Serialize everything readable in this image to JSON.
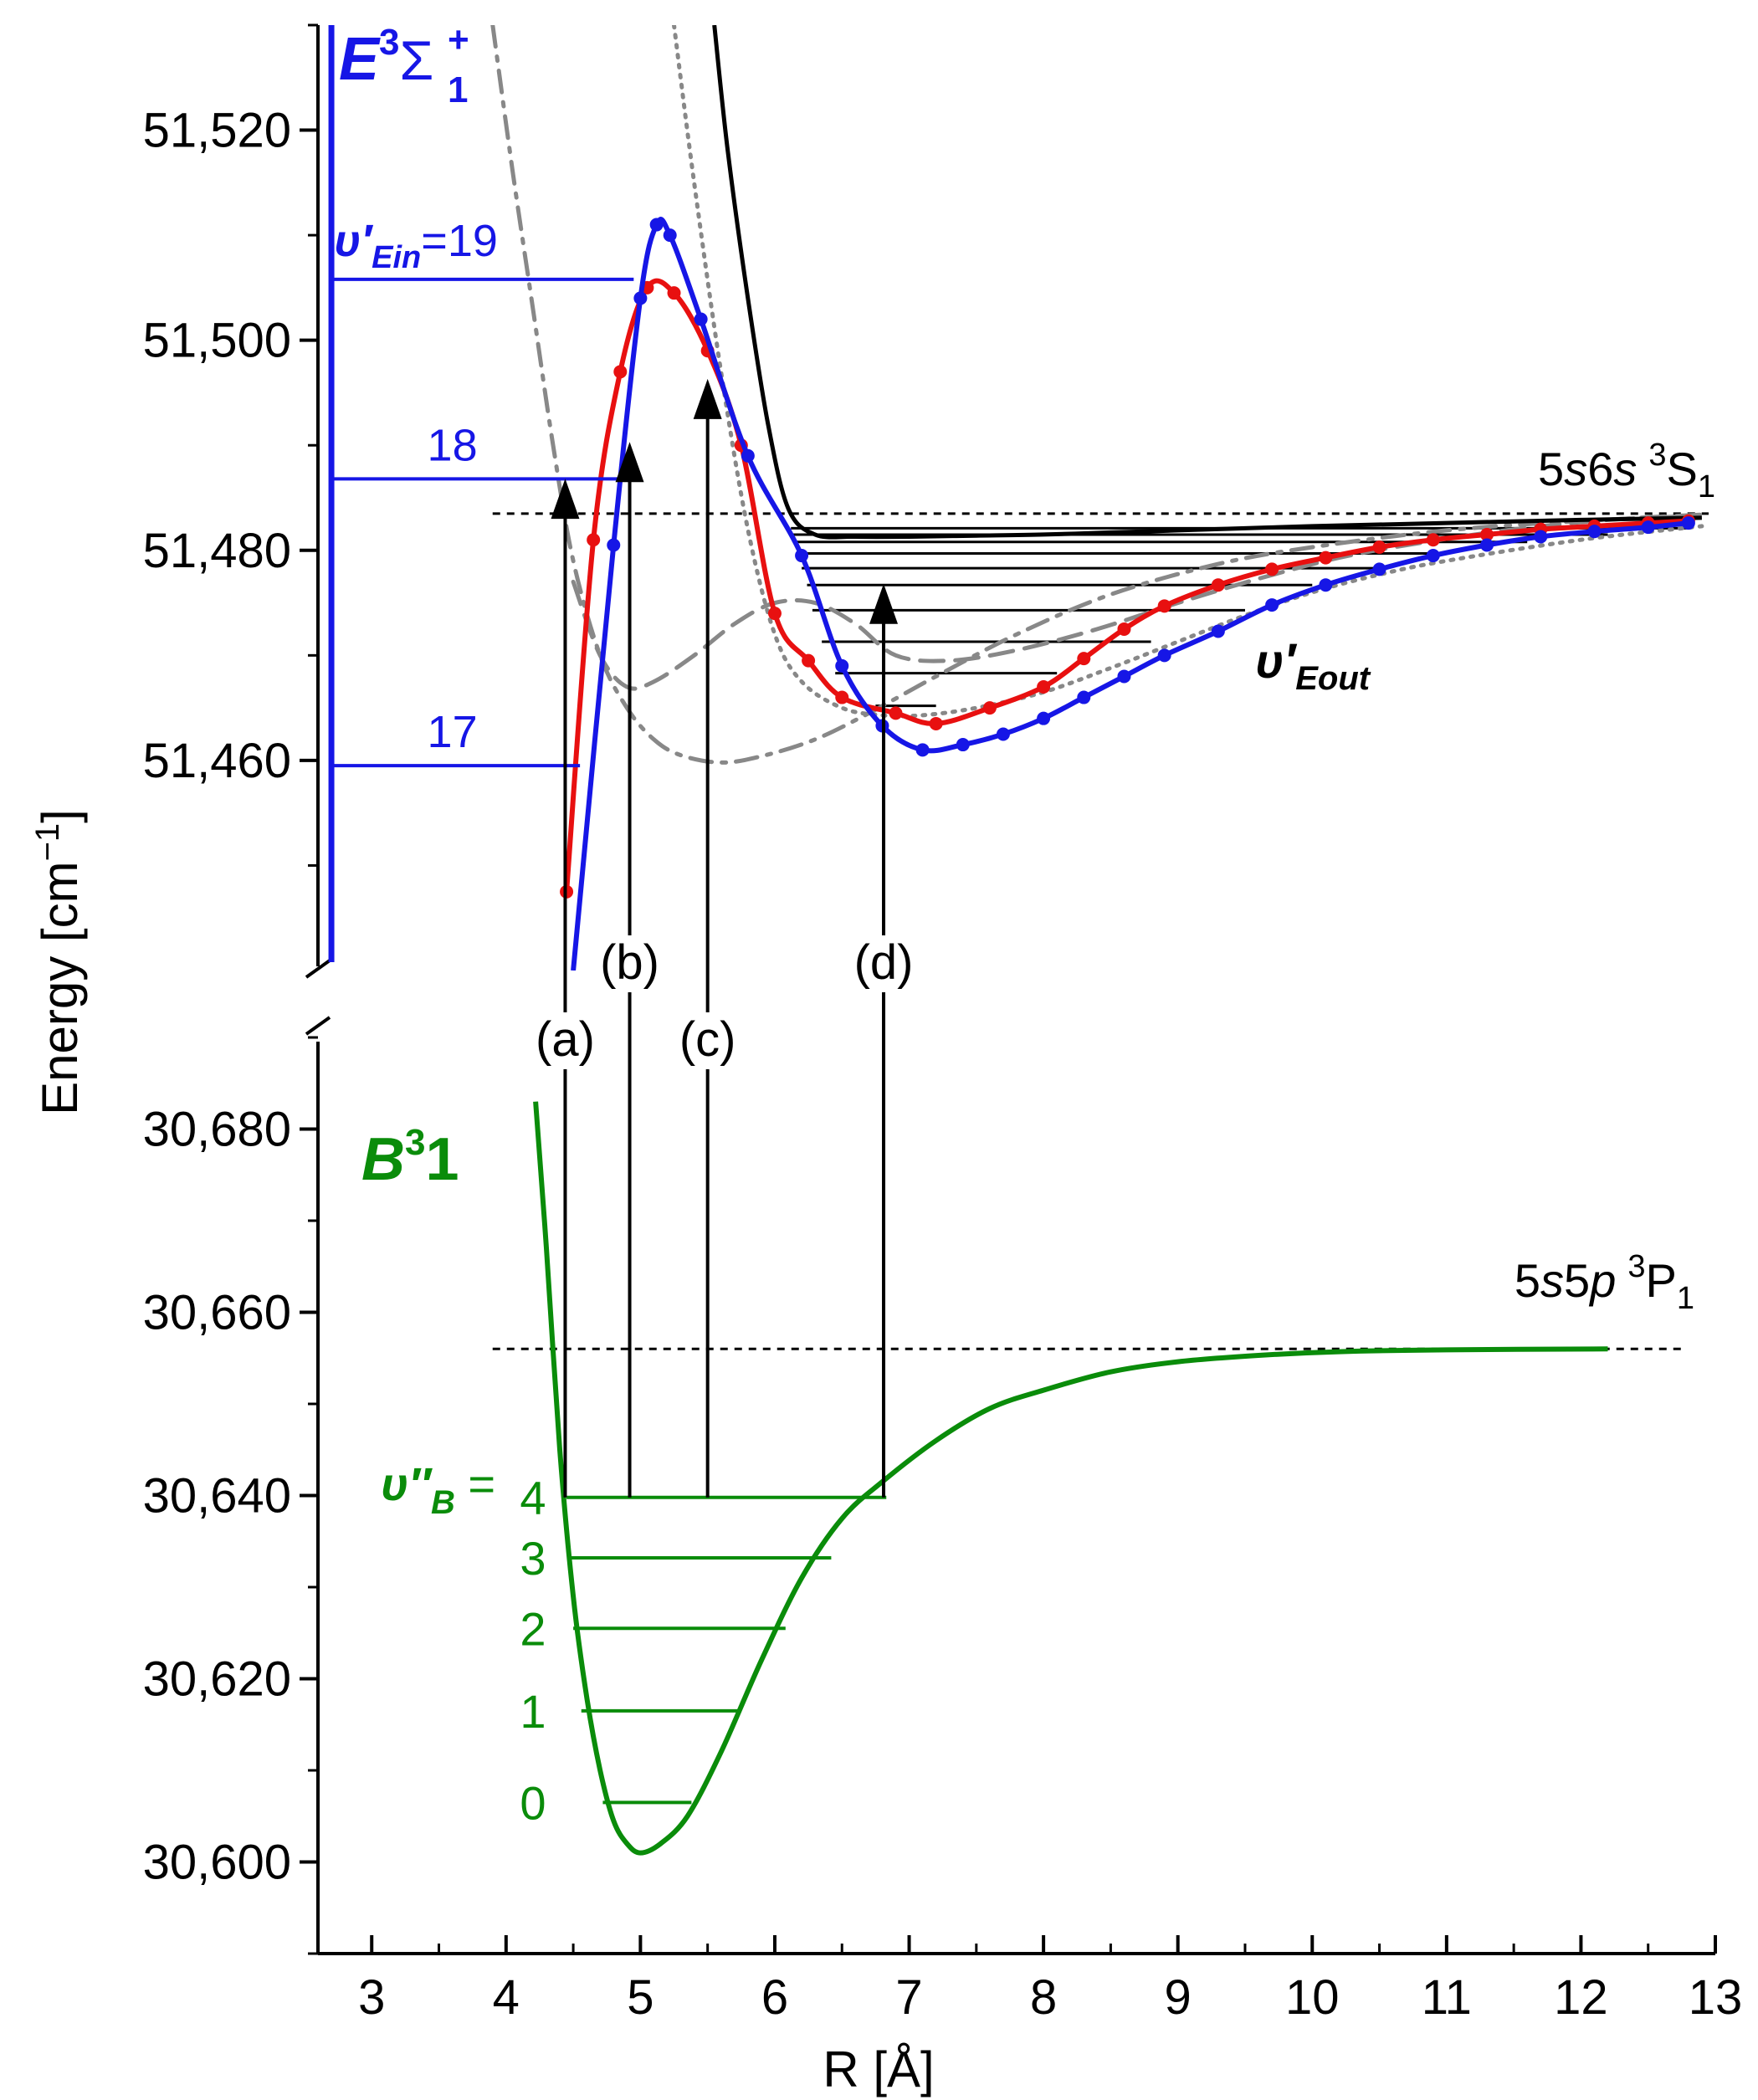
{
  "chart_data": {
    "type": "line",
    "title": "",
    "xlabel": "R [Å]",
    "ylabel": "Energy [cm",
    "ylabel_sup": "−1",
    "ylabel_end": "]",
    "xlim": [
      2.6,
      13
    ],
    "x_ticks": [
      {
        "v": 3,
        "label": "3"
      },
      {
        "v": 4,
        "label": "4"
      },
      {
        "v": 5,
        "label": "5"
      },
      {
        "v": 6,
        "label": "6"
      },
      {
        "v": 7,
        "label": "7"
      },
      {
        "v": 8,
        "label": "8"
      },
      {
        "v": 9,
        "label": "9"
      },
      {
        "v": 10,
        "label": "10"
      },
      {
        "v": 11,
        "label": "11"
      },
      {
        "v": 12,
        "label": "12"
      },
      {
        "v": 13,
        "label": "13"
      }
    ],
    "upper_panel": {
      "ylim": [
        51440,
        51530
      ],
      "y_ticks": [
        {
          "v": 51460,
          "label": "51,460"
        },
        {
          "v": 51480,
          "label": "51,480"
        },
        {
          "v": 51500,
          "label": "51,500"
        },
        {
          "v": 51520,
          "label": "51,520"
        }
      ],
      "state_label": {
        "main": "E",
        "sup": "3",
        "sigma": "Σ",
        "sub": "1",
        "plus": "+",
        "color": "#1616e6"
      },
      "asymptote": {
        "label_pre": "5",
        "label_s1": "s",
        "label_mid": "6",
        "label_s2": "s",
        "label_sup": "3",
        "label_term": "S",
        "label_sub": "1",
        "y": 51483.5
      },
      "outer_levels": {
        "label": "υ′",
        "label_sub": "Eout",
        "energies": [
          51465.2,
          51468.3,
          51471.3,
          51474.3,
          51476.7,
          51478.3,
          51479.7,
          51480.8,
          51481.5,
          51482.1
        ]
      },
      "inner_levels": [
        {
          "label": "17",
          "E": 51459.5,
          "x_end": 4.55
        },
        {
          "label": "18",
          "E": 51486.8,
          "x_end": 4.92
        },
        {
          "label": "19",
          "label_pre": "υ′",
          "label_sub": "Ein",
          "label_eq": "=",
          "E": 51505.8,
          "x_end": 4.95
        }
      ],
      "series": [
        {
          "name": "",
          "color": "#e81010",
          "markers": true,
          "x": [
            4.45,
            4.65,
            4.85,
            5.05,
            5.25,
            5.5,
            5.75,
            6.0,
            6.25,
            6.5,
            6.9,
            7.2,
            7.6,
            8.0,
            8.3,
            8.6,
            8.9,
            9.3,
            9.7,
            10.1,
            10.5,
            10.9,
            11.3,
            11.7,
            12.1,
            12.5,
            12.8
          ],
          "y": [
            51447.5,
            51481,
            51497,
            51505,
            51504.5,
            51499,
            51490,
            51474,
            51469.5,
            51466,
            51464.5,
            51463.5,
            51465,
            51467,
            51469.7,
            51472.5,
            51474.7,
            51476.7,
            51478.2,
            51479.3,
            51480.3,
            51481,
            51481.5,
            51482,
            51482.3,
            51482.6,
            51482.8
          ]
        },
        {
          "name": "",
          "color": "#1616e6",
          "markers": true,
          "x": [
            4.5,
            4.8,
            5.0,
            5.12,
            5.22,
            5.45,
            5.8,
            6.2,
            6.5,
            6.8,
            7.1,
            7.4,
            7.7,
            8.0,
            8.3,
            8.6,
            8.9,
            9.3,
            9.7,
            10.1,
            10.5,
            10.9,
            11.3,
            11.7,
            12.1,
            12.5,
            12.8
          ],
          "y": [
            51440,
            51480.5,
            51504,
            51511,
            51510,
            51502,
            51489,
            51479.5,
            51469,
            51463.3,
            51461,
            51461.5,
            51462.5,
            51464,
            51466,
            51468,
            51470,
            51472.3,
            51474.8,
            51476.7,
            51478.2,
            51479.5,
            51480.5,
            51481.3,
            51481.8,
            51482.2,
            51482.6
          ]
        },
        {
          "name": "",
          "color": "#000000",
          "markers": false,
          "x": [
            5.55,
            5.65,
            5.8,
            5.95,
            6.1,
            6.3,
            6.6,
            7.0,
            7.5,
            8.0,
            8.5,
            9.0,
            9.5,
            10.0,
            11.0,
            12.0,
            12.9
          ],
          "y": [
            51530,
            51518,
            51504,
            51492,
            51484,
            51481.5,
            51481.3,
            51481.3,
            51481.4,
            51481.5,
            51481.7,
            51481.9,
            51482.1,
            51482.3,
            51482.6,
            51482.9,
            51483.1
          ]
        },
        {
          "name": "",
          "color": "#888888",
          "dash": "dotted",
          "markers": false,
          "x": [
            5.25,
            5.4,
            5.6,
            5.8,
            6.0,
            6.2,
            6.5,
            6.8,
            7.1,
            7.5,
            8.0,
            8.5,
            9.0,
            9.5,
            10.0,
            10.5,
            11.0,
            12.0,
            12.9
          ],
          "y": [
            51530,
            51515,
            51497,
            51482,
            51472,
            51467.5,
            51465,
            51464.3,
            51464.3,
            51465,
            51466.5,
            51468.8,
            51471.3,
            51473.8,
            51476,
            51477.7,
            51479,
            51481,
            51482.3
          ]
        },
        {
          "name": "",
          "color": "#888888",
          "dash": "dashed",
          "markers": false,
          "x": [
            4.5,
            4.7,
            4.9,
            5.1,
            5.4,
            5.7,
            6.0,
            6.3,
            6.6,
            6.9,
            7.3,
            7.8,
            8.4,
            9.0,
            9.6,
            10.2,
            10.8,
            11.5,
            12.2,
            12.9
          ],
          "y": [
            51477,
            51470,
            51467,
            51467.5,
            51470,
            51473,
            51475,
            51475,
            51473,
            51470,
            51469.5,
            51470.5,
            51472.5,
            51475,
            51477.3,
            51479.3,
            51480.7,
            51482,
            51482.9,
            51483.4
          ]
        },
        {
          "name": "",
          "color": "#888888",
          "dash": "dashdot",
          "markers": false,
          "x": [
            3.9,
            4.05,
            4.2,
            4.35,
            4.5,
            4.7,
            4.9,
            5.1,
            5.3,
            5.6,
            5.9,
            6.3,
            6.7,
            7.2,
            7.8,
            8.5,
            9.3,
            10.0,
            11.0,
            12.0,
            12.9
          ],
          "y": [
            51530,
            51516,
            51503,
            51490,
            51479,
            51470,
            51465,
            51462,
            51460.5,
            51459.8,
            51460.4,
            51462,
            51464.5,
            51468,
            51472,
            51475.8,
            51478.7,
            51480.3,
            51481.9,
            51482.8,
            51483.3
          ]
        }
      ]
    },
    "lower_panel": {
      "ylim": [
        30590,
        30690
      ],
      "y_ticks": [
        {
          "v": 30600,
          "label": "30,600"
        },
        {
          "v": 30620,
          "label": "30,620"
        },
        {
          "v": 30640,
          "label": "30,640"
        },
        {
          "v": 30660,
          "label": "30,660"
        },
        {
          "v": 30680,
          "label": "30,680"
        }
      ],
      "state_label": {
        "main": "B",
        "sup": "3",
        "tail": "1",
        "color": "#0a8c0a"
      },
      "asymptote": {
        "label_pre": "5",
        "label_s1": "s",
        "label_mid": "5",
        "label_s2": "p",
        "label_sup": "3",
        "label_term": "P",
        "label_sub": "1",
        "y": 30656
      },
      "curve": {
        "color": "#0a8c0a",
        "x": [
          4.22,
          4.3,
          4.4,
          4.5,
          4.6,
          4.7,
          4.8,
          4.9,
          5.0,
          5.15,
          5.35,
          5.6,
          5.9,
          6.2,
          6.5,
          6.8,
          7.2,
          7.6,
          8.0,
          8.5,
          9.0,
          9.6,
          10.2,
          11.0,
          12.2
        ],
        "y": [
          30683,
          30667,
          30645,
          30629,
          30618,
          30610,
          30604.5,
          30602,
          30601,
          30602,
          30605,
          30612,
          30622,
          30631,
          30637.5,
          30641.5,
          30646,
          30649.5,
          30651.5,
          30653.5,
          30654.6,
          30655.3,
          30655.7,
          30655.9,
          30656
        ]
      },
      "vib_label": {
        "pre": "υ″",
        "sub": "B",
        "eq": " = "
      },
      "levels": [
        {
          "label": "0",
          "E": 30606.5,
          "x1": 4.72,
          "x2": 5.38
        },
        {
          "label": "1",
          "E": 30616.5,
          "x1": 4.56,
          "x2": 5.75
        },
        {
          "label": "2",
          "E": 30625.5,
          "x1": 4.5,
          "x2": 6.08
        },
        {
          "label": "3",
          "E": 30633.2,
          "x1": 4.47,
          "x2": 6.42
        },
        {
          "label": "4",
          "E": 30639.8,
          "x1": 4.45,
          "x2": 6.83
        }
      ]
    },
    "transitions": [
      {
        "label": "(a)",
        "x": 4.44,
        "E_top": 51486.5
      },
      {
        "label": "(b)",
        "x": 4.92,
        "E_top": 51490
      },
      {
        "label": "(c)",
        "x": 5.5,
        "E_top": 51496
      },
      {
        "label": "(d)",
        "x": 6.81,
        "E_top": 51476.5
      }
    ]
  }
}
